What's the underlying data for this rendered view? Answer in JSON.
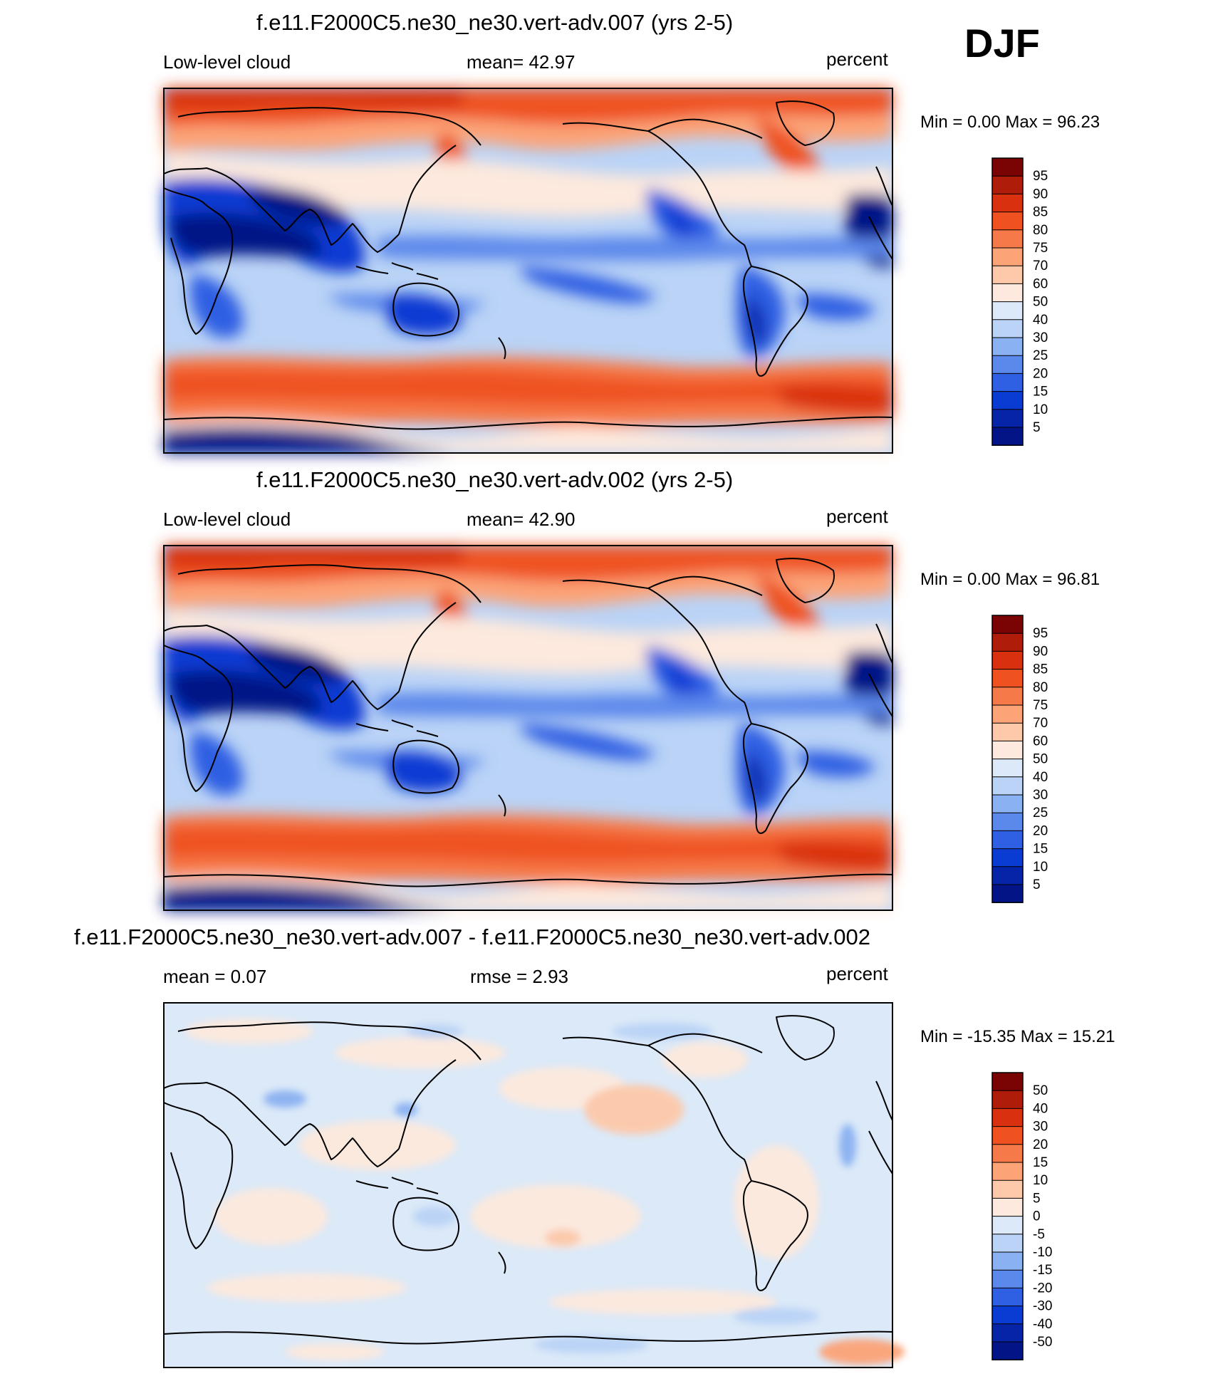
{
  "season": "DJF",
  "panels": [
    {
      "id": "top",
      "title": "f.e11.F2000C5.ne30_ne30.vert-adv.007 (yrs 2-5)",
      "left_label": "Low-level cloud",
      "center_label": "mean=  42.97",
      "right_label": "percent",
      "minmax": "Min =   0.00 Max =  96.23",
      "colorbar": {
        "ticks": [
          "95",
          "90",
          "85",
          "80",
          "75",
          "70",
          "60",
          "50",
          "40",
          "30",
          "25",
          "20",
          "15",
          "10",
          "5"
        ],
        "colors": [
          "#7a0403",
          "#b01c0a",
          "#d9300f",
          "#ef5220",
          "#f67a49",
          "#fca377",
          "#fdc9aa",
          "#fde9dd",
          "#dbe9f8",
          "#bad3f6",
          "#8ab1f1",
          "#5b88eb",
          "#2f5fe3",
          "#0a3bd3",
          "#0624a8",
          "#021486"
        ]
      }
    },
    {
      "id": "middle",
      "title": "f.e11.F2000C5.ne30_ne30.vert-adv.002 (yrs 2-5)",
      "left_label": "Low-level cloud",
      "center_label": "mean=  42.90",
      "right_label": "percent",
      "minmax": "Min =   0.00 Max =  96.81",
      "colorbar": {
        "ticks": [
          "95",
          "90",
          "85",
          "80",
          "75",
          "70",
          "60",
          "50",
          "40",
          "30",
          "25",
          "20",
          "15",
          "10",
          "5"
        ],
        "colors": [
          "#7a0403",
          "#b01c0a",
          "#d9300f",
          "#ef5220",
          "#f67a49",
          "#fca377",
          "#fdc9aa",
          "#fde9dd",
          "#dbe9f8",
          "#bad3f6",
          "#8ab1f1",
          "#5b88eb",
          "#2f5fe3",
          "#0a3bd3",
          "#0624a8",
          "#021486"
        ]
      }
    },
    {
      "id": "bottom",
      "title": "f.e11.F2000C5.ne30_ne30.vert-adv.007 - f.e11.F2000C5.ne30_ne30.vert-adv.002",
      "left_label": "mean =   0.07",
      "center_label": "rmse =   2.93",
      "right_label": "percent",
      "minmax": "Min = -15.35 Max =  15.21",
      "colorbar": {
        "ticks": [
          "50",
          "40",
          "30",
          "20",
          "15",
          "10",
          "5",
          "0",
          "-5",
          "-10",
          "-15",
          "-20",
          "-30",
          "-40",
          "-50"
        ],
        "colors": [
          "#7a0403",
          "#b01c0a",
          "#d9300f",
          "#ef5220",
          "#f67a49",
          "#fca377",
          "#fdc9aa",
          "#fde9dd",
          "#dbe9f8",
          "#bad3f6",
          "#8ab1f1",
          "#5b88eb",
          "#2f5fe3",
          "#0a3bd3",
          "#0624a8",
          "#021486"
        ]
      }
    }
  ]
}
